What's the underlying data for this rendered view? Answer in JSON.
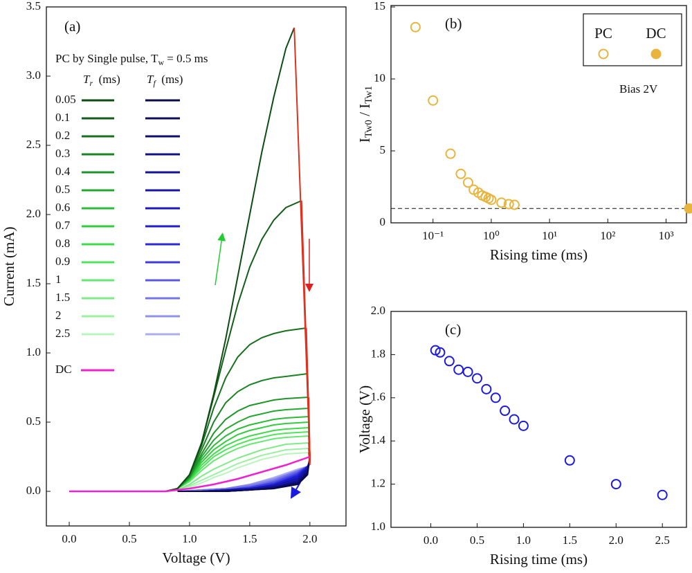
{
  "chart_data": [
    {
      "type": "line",
      "panel_label": "(a)",
      "x_label": "Voltage (V)",
      "y_label": "Current (mA)",
      "xlim": [
        -0.19,
        2.3
      ],
      "ylim": [
        -0.25,
        3.5
      ],
      "xticks": [
        {
          "value": 0,
          "label": "0.0"
        },
        {
          "value": 0.5,
          "label": "0.5"
        },
        {
          "value": 1,
          "label": "1.0"
        },
        {
          "value": 1.5,
          "label": "1.5"
        },
        {
          "value": 2,
          "label": "2.0"
        }
      ],
      "yticks": [
        {
          "value": 0,
          "label": "0.0"
        },
        {
          "value": 0.5,
          "label": "0.5"
        },
        {
          "value": 1,
          "label": "1.0"
        },
        {
          "value": 1.5,
          "label": "1.5"
        },
        {
          "value": 2,
          "label": "2.0"
        },
        {
          "value": 2.5,
          "label": "2.5"
        },
        {
          "value": 3,
          "label": "3.0"
        },
        {
          "value": 3.5,
          "label": "3.5"
        }
      ],
      "legend_title": [
        {
          "text": "PC by Single pulse, T"
        },
        {
          "text": "w",
          "sub": true
        },
        {
          "text": " = 0.5 ms"
        }
      ],
      "legend_headers": [
        [
          {
            "text": "T",
            "italic": true
          },
          {
            "text": "r",
            "sub": true,
            "italic": true
          },
          {
            "text": "  (ms)"
          }
        ],
        [
          {
            "text": "T",
            "italic": true
          },
          {
            "text": "f",
            "sub": true,
            "italic": true
          },
          {
            "text": "  (ms)"
          }
        ]
      ],
      "drop_color": "#e0301e",
      "series": [
        {
          "name": "0.05",
          "color": "#0d4d14",
          "fall_color": "#0a0a4a",
          "x": [
            0,
            0.8,
            0.9,
            1.0,
            1.1,
            1.2,
            1.3,
            1.4,
            1.5,
            1.6,
            1.7,
            1.8,
            1.87
          ],
          "values": [
            0,
            0,
            0.02,
            0.12,
            0.35,
            0.7,
            1.1,
            1.55,
            2.0,
            2.45,
            2.85,
            3.2,
            3.35
          ],
          "fall_x": [
            2.0,
            1.98,
            1.9,
            1.7,
            1.5,
            1.3,
            1.1,
            0.9
          ],
          "fall_values": [
            0.25,
            0.12,
            0.05,
            0.02,
            0.01,
            0,
            0,
            0
          ]
        },
        {
          "name": "0.1",
          "color": "#125e18",
          "fall_color": "#0c0c5e",
          "x": [
            0,
            0.8,
            0.9,
            1.0,
            1.1,
            1.2,
            1.3,
            1.4,
            1.5,
            1.6,
            1.7,
            1.8,
            1.93
          ],
          "values": [
            0,
            0,
            0.02,
            0.12,
            0.35,
            0.68,
            1.02,
            1.35,
            1.62,
            1.82,
            1.96,
            2.05,
            2.1
          ],
          "fall_x": [
            2.0,
            1.98,
            1.9,
            1.7,
            1.5,
            1.3,
            1.1,
            0.9
          ],
          "fall_values": [
            0.25,
            0.13,
            0.06,
            0.02,
            0.01,
            0,
            0,
            0
          ]
        },
        {
          "name": "0.2",
          "color": "#16701c",
          "fall_color": "#0e0e72",
          "x": [
            0,
            0.8,
            0.9,
            1.0,
            1.1,
            1.2,
            1.3,
            1.4,
            1.5,
            1.6,
            1.7,
            1.8,
            1.97
          ],
          "values": [
            0,
            0,
            0.02,
            0.12,
            0.33,
            0.6,
            0.82,
            0.97,
            1.06,
            1.11,
            1.14,
            1.16,
            1.18
          ],
          "fall_x": [
            2.0,
            1.98,
            1.9,
            1.7,
            1.5,
            1.3,
            1.1,
            0.9
          ],
          "fall_values": [
            0.25,
            0.14,
            0.06,
            0.03,
            0.01,
            0,
            0,
            0
          ]
        },
        {
          "name": "0.3",
          "color": "#1a8222",
          "fall_color": "#101086",
          "x": [
            0,
            0.8,
            0.9,
            1.0,
            1.1,
            1.2,
            1.3,
            1.4,
            1.5,
            1.6,
            1.7,
            1.8,
            1.98
          ],
          "values": [
            0,
            0,
            0.02,
            0.11,
            0.3,
            0.5,
            0.64,
            0.72,
            0.77,
            0.8,
            0.82,
            0.83,
            0.85
          ],
          "fall_x": [
            2.0,
            1.98,
            1.9,
            1.7,
            1.5,
            1.3,
            1.1,
            0.9
          ],
          "fall_values": [
            0.24,
            0.15,
            0.07,
            0.03,
            0.01,
            0,
            0,
            0
          ]
        },
        {
          "name": "0.4",
          "color": "#1e9428",
          "fall_color": "#12129a",
          "x": [
            0,
            0.8,
            0.9,
            1.0,
            1.1,
            1.2,
            1.3,
            1.4,
            1.5,
            1.6,
            1.7,
            1.8,
            1.99
          ],
          "values": [
            0,
            0,
            0.02,
            0.1,
            0.27,
            0.42,
            0.52,
            0.58,
            0.62,
            0.64,
            0.66,
            0.67,
            0.68
          ],
          "fall_x": [
            2.0,
            1.98,
            1.9,
            1.7,
            1.5,
            1.3,
            1.1,
            0.9
          ],
          "fall_values": [
            0.24,
            0.16,
            0.08,
            0.03,
            0.01,
            0.01,
            0,
            0
          ]
        },
        {
          "name": "0.5",
          "color": "#22a82e",
          "fall_color": "#1414ae",
          "x": [
            0,
            0.8,
            0.9,
            1.0,
            1.1,
            1.2,
            1.3,
            1.4,
            1.5,
            1.6,
            1.7,
            1.8,
            1.99
          ],
          "values": [
            0,
            0,
            0.02,
            0.1,
            0.25,
            0.37,
            0.45,
            0.5,
            0.54,
            0.56,
            0.58,
            0.59,
            0.6
          ],
          "fall_x": [
            2.0,
            1.98,
            1.9,
            1.7,
            1.5,
            1.3,
            1.1,
            0.9
          ],
          "fall_values": [
            0.23,
            0.17,
            0.09,
            0.04,
            0.02,
            0.01,
            0,
            0
          ]
        },
        {
          "name": "0.6",
          "color": "#2bbb36",
          "fall_color": "#1818c0",
          "x": [
            0,
            0.8,
            0.9,
            1.0,
            1.1,
            1.2,
            1.3,
            1.4,
            1.5,
            1.6,
            1.7,
            1.8,
            1.99
          ],
          "values": [
            0,
            0,
            0.02,
            0.09,
            0.23,
            0.33,
            0.4,
            0.45,
            0.48,
            0.5,
            0.52,
            0.53,
            0.54
          ],
          "fall_x": [
            2.0,
            1.98,
            1.9,
            1.7,
            1.5,
            1.3,
            1.1,
            0.9
          ],
          "fall_values": [
            0.23,
            0.17,
            0.1,
            0.04,
            0.02,
            0.01,
            0,
            0
          ]
        },
        {
          "name": "0.7",
          "color": "#33cc3e",
          "fall_color": "#1e1ed0",
          "x": [
            0,
            0.8,
            0.9,
            1.0,
            1.1,
            1.2,
            1.3,
            1.4,
            1.5,
            1.6,
            1.7,
            1.8,
            1.99
          ],
          "values": [
            0,
            0,
            0.02,
            0.09,
            0.21,
            0.3,
            0.36,
            0.41,
            0.44,
            0.46,
            0.48,
            0.49,
            0.5
          ],
          "fall_x": [
            2.0,
            1.98,
            1.9,
            1.7,
            1.5,
            1.3,
            1.1,
            0.9
          ],
          "fall_values": [
            0.22,
            0.18,
            0.11,
            0.05,
            0.02,
            0.01,
            0,
            0
          ]
        },
        {
          "name": "0.8",
          "color": "#3ddb48",
          "fall_color": "#2828dc",
          "x": [
            0,
            0.8,
            0.9,
            1.0,
            1.1,
            1.2,
            1.3,
            1.4,
            1.5,
            1.6,
            1.7,
            1.8,
            1.99
          ],
          "values": [
            0,
            0,
            0.02,
            0.08,
            0.19,
            0.27,
            0.33,
            0.37,
            0.4,
            0.42,
            0.44,
            0.45,
            0.46
          ],
          "fall_x": [
            2.0,
            1.98,
            1.9,
            1.7,
            1.5,
            1.3,
            1.1,
            0.9
          ],
          "fall_values": [
            0.22,
            0.18,
            0.12,
            0.05,
            0.02,
            0.01,
            0,
            0
          ]
        },
        {
          "name": "0.9",
          "color": "#4ee55a",
          "fall_color": "#3c3ce2",
          "x": [
            0,
            0.8,
            0.9,
            1.0,
            1.1,
            1.2,
            1.3,
            1.4,
            1.5,
            1.6,
            1.7,
            1.8,
            1.99
          ],
          "values": [
            0,
            0,
            0.02,
            0.08,
            0.17,
            0.25,
            0.3,
            0.34,
            0.37,
            0.39,
            0.41,
            0.42,
            0.43
          ],
          "fall_x": [
            2.0,
            1.98,
            1.9,
            1.7,
            1.5,
            1.3,
            1.1,
            0.9
          ],
          "fall_values": [
            0.21,
            0.18,
            0.13,
            0.06,
            0.03,
            0.01,
            0,
            0
          ]
        },
        {
          "name": "1",
          "color": "#66e870",
          "fall_color": "#5858e6",
          "x": [
            0,
            0.8,
            0.9,
            1.0,
            1.1,
            1.2,
            1.3,
            1.4,
            1.5,
            1.6,
            1.7,
            1.8,
            1.99
          ],
          "values": [
            0,
            0,
            0.02,
            0.07,
            0.15,
            0.22,
            0.27,
            0.31,
            0.34,
            0.36,
            0.38,
            0.39,
            0.4
          ],
          "fall_x": [
            2.0,
            1.98,
            1.9,
            1.7,
            1.5,
            1.3,
            1.1,
            0.9
          ],
          "fall_values": [
            0.21,
            0.18,
            0.14,
            0.07,
            0.03,
            0.01,
            0,
            0
          ]
        },
        {
          "name": "1.5",
          "color": "#80ea88",
          "fall_color": "#7474ea",
          "x": [
            0,
            0.8,
            0.9,
            1.0,
            1.1,
            1.2,
            1.3,
            1.4,
            1.5,
            1.6,
            1.7,
            1.8,
            1.99
          ],
          "values": [
            0,
            0,
            0.01,
            0.05,
            0.11,
            0.16,
            0.2,
            0.24,
            0.27,
            0.3,
            0.32,
            0.34,
            0.35
          ],
          "fall_x": [
            2.0,
            1.98,
            1.9,
            1.7,
            1.5,
            1.3,
            1.1,
            0.9
          ],
          "fall_values": [
            0.2,
            0.18,
            0.15,
            0.08,
            0.04,
            0.02,
            0.01,
            0
          ]
        },
        {
          "name": "2",
          "color": "#9cf0a2",
          "fall_color": "#9090ee",
          "x": [
            0,
            0.8,
            0.9,
            1.0,
            1.1,
            1.2,
            1.3,
            1.4,
            1.5,
            1.6,
            1.7,
            1.8,
            1.99
          ],
          "values": [
            0,
            0,
            0.01,
            0.04,
            0.08,
            0.12,
            0.16,
            0.2,
            0.23,
            0.26,
            0.28,
            0.3,
            0.31
          ],
          "fall_x": [
            2.0,
            1.98,
            1.9,
            1.7,
            1.5,
            1.3,
            1.1,
            0.9
          ],
          "fall_values": [
            0.2,
            0.18,
            0.15,
            0.09,
            0.05,
            0.02,
            0.01,
            0
          ]
        },
        {
          "name": "2.5",
          "color": "#b8f5bc",
          "fall_color": "#acacf2",
          "x": [
            0,
            0.8,
            0.9,
            1.0,
            1.1,
            1.2,
            1.3,
            1.4,
            1.5,
            1.6,
            1.7,
            1.8,
            1.99
          ],
          "values": [
            0,
            0,
            0.01,
            0.03,
            0.06,
            0.1,
            0.13,
            0.17,
            0.2,
            0.23,
            0.25,
            0.27,
            0.28
          ],
          "fall_x": [
            2.0,
            1.98,
            1.9,
            1.7,
            1.5,
            1.3,
            1.1,
            0.9
          ],
          "fall_values": [
            0.19,
            0.18,
            0.16,
            0.1,
            0.05,
            0.02,
            0.01,
            0
          ]
        }
      ],
      "dc": {
        "name": "DC",
        "color": "#f020d0",
        "x": [
          0,
          0.8,
          1.0,
          1.2,
          1.4,
          1.6,
          1.8,
          2.0
        ],
        "values": [
          0,
          0,
          0.02,
          0.05,
          0.09,
          0.14,
          0.19,
          0.25
        ]
      }
    },
    {
      "type": "scatter",
      "panel_label": "(b)",
      "x_label": "Rising time (ms)",
      "y_label": [
        {
          "text": "I"
        },
        {
          "text": "Tw0",
          "sub": true
        },
        {
          "text": " / I"
        },
        {
          "text": "Tw1",
          "sub": true
        }
      ],
      "log_x": true,
      "xlim": [
        0.019,
        2240
      ],
      "ylim": [
        0,
        15.1
      ],
      "xticks": [
        {
          "value": 0.1,
          "label": "10⁻¹"
        },
        {
          "value": 1,
          "label": "10⁰"
        },
        {
          "value": 10,
          "label": "10¹"
        },
        {
          "value": 100,
          "label": "10²"
        },
        {
          "value": 1000,
          "label": "10³"
        }
      ],
      "yticks": [
        0,
        5,
        10,
        15
      ],
      "reference_line": 1,
      "annotation": "Bias 2V",
      "series": [
        {
          "name": "PC",
          "color": "#e8b43c",
          "filled": false,
          "x": [
            0.05,
            0.1,
            0.2,
            0.3,
            0.4,
            0.5,
            0.6,
            0.7,
            0.8,
            0.9,
            1,
            1.5,
            2,
            2.5
          ],
          "values": [
            13.6,
            8.5,
            4.8,
            3.4,
            2.8,
            2.3,
            2.1,
            1.9,
            1.8,
            1.7,
            1.6,
            1.4,
            1.3,
            1.25
          ]
        },
        {
          "name": "DC",
          "color": "#e8b43c",
          "filled": true,
          "x": [
            2500
          ],
          "values": [
            1.0
          ]
        }
      ]
    },
    {
      "type": "scatter",
      "panel_label": "(c)",
      "x_label": "Rising time (ms)",
      "y_label": "Voltage (V)",
      "xlim": [
        -0.43,
        2.76
      ],
      "ylim": [
        1.0,
        2.0
      ],
      "xticks": [
        {
          "value": 0,
          "label": "0.0"
        },
        {
          "value": 0.5,
          "label": "0.5"
        },
        {
          "value": 1,
          "label": "1.0"
        },
        {
          "value": 1.5,
          "label": "1.5"
        },
        {
          "value": 2,
          "label": "2.0"
        },
        {
          "value": 2.5,
          "label": "2.5"
        }
      ],
      "yticks": [
        {
          "value": 1,
          "label": "1.0"
        },
        {
          "value": 1.2,
          "label": "1.2"
        },
        {
          "value": 1.4,
          "label": "1.4"
        },
        {
          "value": 1.6,
          "label": "1.6"
        },
        {
          "value": 1.8,
          "label": "1.8"
        },
        {
          "value": 2,
          "label": "2.0"
        }
      ],
      "x": [
        0.05,
        0.1,
        0.2,
        0.3,
        0.4,
        0.5,
        0.6,
        0.7,
        0.8,
        0.9,
        1,
        1.5,
        2,
        2.5
      ],
      "series": [
        {
          "color": "#1a1ae0",
          "filled": false,
          "values": [
            1.82,
            1.81,
            1.77,
            1.73,
            1.72,
            1.69,
            1.64,
            1.6,
            1.54,
            1.5,
            1.47,
            1.31,
            1.2,
            1.15
          ]
        }
      ]
    }
  ]
}
